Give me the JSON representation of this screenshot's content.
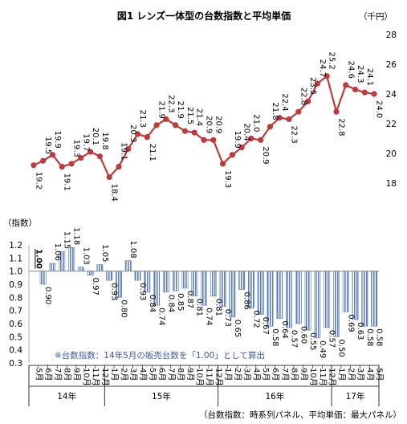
{
  "chart_data": [
    {
      "type": "line",
      "title": "図1 レンズ一体型の台数指数と平均単価",
      "ylabel": "（千円）",
      "ylim": [
        18,
        28
      ],
      "yticks": [
        18,
        20,
        22,
        24,
        26,
        28
      ],
      "grid": false,
      "color": "#c0393b",
      "series": [
        {
          "values": [
            19.2,
            19.5,
            19.9,
            19.1,
            19.3,
            19.7,
            20.1,
            19.8,
            18.4,
            19.1,
            20.3,
            21.3,
            21.1,
            21.9,
            22.3,
            21.9,
            21.5,
            21.4,
            20.9,
            20.9,
            19.3,
            19.9,
            20.4,
            21.0,
            20.9,
            21.8,
            22.4,
            22.3,
            22.8,
            23.5,
            24.7,
            25.2,
            22.8,
            24.6,
            24.3,
            24.1,
            24.0
          ]
        }
      ]
    },
    {
      "type": "bar",
      "ylabel": "（指数）",
      "ylim": [
        0.3,
        1.2
      ],
      "yticks": [
        "0.3",
        "0.4",
        "0.5",
        "0.6",
        "0.7",
        "0.8",
        "0.9",
        "1.0",
        "1.1",
        "1.2"
      ],
      "baseline": 1.0,
      "grid": false,
      "series": [
        {
          "values": [
            1.0,
            0.9,
            1.06,
            1.15,
            1.18,
            1.03,
            0.97,
            1.05,
            0.93,
            0.8,
            1.08,
            0.93,
            0.84,
            0.74,
            0.84,
            0.85,
            0.87,
            0.81,
            0.74,
            0.81,
            0.73,
            0.65,
            0.86,
            0.72,
            0.67,
            0.58,
            0.64,
            0.57,
            0.6,
            0.55,
            0.49,
            0.57,
            0.5,
            0.69,
            0.63,
            0.58,
            0.58
          ]
        }
      ],
      "categories": [
        "5月",
        "6月",
        "7月",
        "8月",
        "9月",
        "10月",
        "11月",
        "12月",
        "1月",
        "2月",
        "3月",
        "4月",
        "5月",
        "6月",
        "7月",
        "8月",
        "9月",
        "10月",
        "11月",
        "12月",
        "1月",
        "2月",
        "3月",
        "4月",
        "5月",
        "6月",
        "7月",
        "8月",
        "9月",
        "10月",
        "11月",
        "12月",
        "1月",
        "2月",
        "3月",
        "4月",
        "5月"
      ],
      "years": [
        "14年",
        "15年",
        "16年",
        "17年"
      ],
      "note": "※台数指数：14年5月の販売台数を「1.00」として算出",
      "footer": "（台数指数：時系列パネル、平均単価：最大パネル）"
    }
  ]
}
